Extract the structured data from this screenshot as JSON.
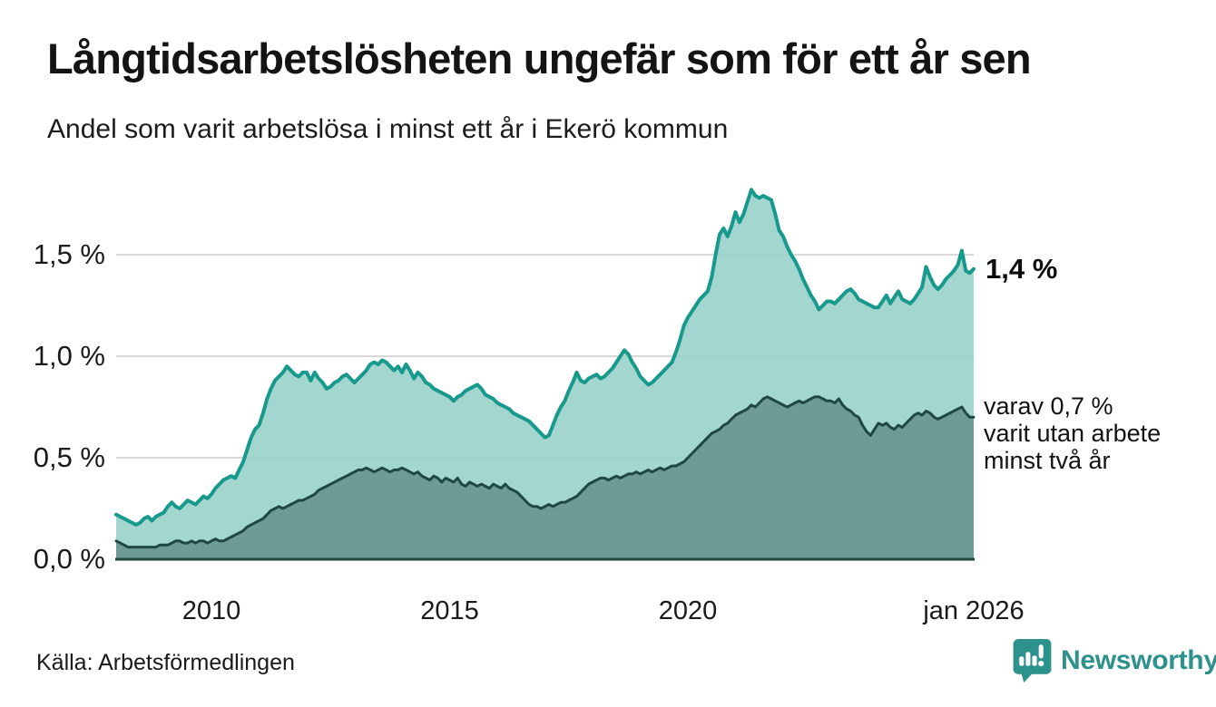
{
  "header": {
    "title": "Långtidsarbetslösheten ungefär som för ett år sen",
    "subtitle": "Andel som varit arbetslösa i minst ett år i Ekerö kommun"
  },
  "footer": {
    "source": "Källa: Arbetsförmedlingen",
    "brand": "Newsworthy"
  },
  "chart_data": {
    "type": "area",
    "title": "Långtidsarbetslösheten ungefär som för ett år sen",
    "subtitle": "Andel som varit arbetslösa i minst ett år i Ekerö kommun",
    "xlabel": "",
    "ylabel": "",
    "unit": "%",
    "x_range": [
      "2008-01",
      "2026-01"
    ],
    "ylim": [
      0,
      1.9
    ],
    "grid": "horizontal",
    "legend": "none",
    "colors": {
      "grid": "#d8d8d8",
      "axis": "#1f463f",
      "total_line": "#17998b",
      "total_fill": "#9ad1cb",
      "subset_line": "#1f4843",
      "subset_fill": "#6c9891",
      "brand_teal": "#2c928b"
    },
    "y_ticks": [
      {
        "label": "0,0 %",
        "value": 0
      },
      {
        "label": "0,5 %",
        "value": 0.5
      },
      {
        "label": "1,0 %",
        "value": 1.0
      },
      {
        "label": "1,5 %",
        "value": 1.5
      }
    ],
    "x_ticks": [
      {
        "label": "2010",
        "month_index": 24
      },
      {
        "label": "2015",
        "month_index": 84
      },
      {
        "label": "2020",
        "month_index": 144
      },
      {
        "label": "jan 2026",
        "month_index": 216
      }
    ],
    "annotations": {
      "total_end": "1,4 %",
      "subset_end": "varav 0,7 %\nvarit utan arbete\nminst två år"
    },
    "series": [
      {
        "name": "Andel arbetslösa minst ett år",
        "current_value": "1,4 %",
        "values": [
          0.22,
          0.21,
          0.2,
          0.19,
          0.18,
          0.17,
          0.18,
          0.2,
          0.21,
          0.19,
          0.21,
          0.22,
          0.23,
          0.26,
          0.28,
          0.26,
          0.25,
          0.27,
          0.29,
          0.28,
          0.27,
          0.29,
          0.31,
          0.3,
          0.32,
          0.35,
          0.37,
          0.39,
          0.4,
          0.41,
          0.4,
          0.44,
          0.48,
          0.54,
          0.6,
          0.64,
          0.66,
          0.72,
          0.79,
          0.84,
          0.88,
          0.9,
          0.92,
          0.95,
          0.93,
          0.91,
          0.9,
          0.92,
          0.92,
          0.88,
          0.92,
          0.89,
          0.87,
          0.84,
          0.85,
          0.87,
          0.88,
          0.9,
          0.91,
          0.89,
          0.87,
          0.89,
          0.91,
          0.93,
          0.96,
          0.97,
          0.96,
          0.98,
          0.97,
          0.95,
          0.93,
          0.95,
          0.92,
          0.96,
          0.93,
          0.89,
          0.92,
          0.9,
          0.87,
          0.86,
          0.84,
          0.83,
          0.82,
          0.81,
          0.8,
          0.78,
          0.8,
          0.81,
          0.83,
          0.84,
          0.85,
          0.86,
          0.84,
          0.81,
          0.8,
          0.79,
          0.77,
          0.76,
          0.75,
          0.74,
          0.72,
          0.71,
          0.7,
          0.69,
          0.68,
          0.66,
          0.64,
          0.62,
          0.6,
          0.61,
          0.66,
          0.71,
          0.75,
          0.78,
          0.83,
          0.87,
          0.92,
          0.88,
          0.87,
          0.89,
          0.9,
          0.91,
          0.89,
          0.9,
          0.92,
          0.94,
          0.97,
          1.0,
          1.03,
          1.01,
          0.97,
          0.94,
          0.9,
          0.88,
          0.86,
          0.87,
          0.89,
          0.91,
          0.93,
          0.95,
          0.97,
          1.02,
          1.08,
          1.15,
          1.19,
          1.22,
          1.25,
          1.28,
          1.3,
          1.32,
          1.39,
          1.5,
          1.6,
          1.63,
          1.59,
          1.64,
          1.71,
          1.66,
          1.7,
          1.76,
          1.82,
          1.79,
          1.78,
          1.79,
          1.78,
          1.77,
          1.7,
          1.62,
          1.59,
          1.54,
          1.5,
          1.47,
          1.43,
          1.38,
          1.34,
          1.3,
          1.27,
          1.23,
          1.25,
          1.27,
          1.27,
          1.26,
          1.28,
          1.3,
          1.32,
          1.33,
          1.31,
          1.28,
          1.27,
          1.26,
          1.25,
          1.24,
          1.24,
          1.27,
          1.3,
          1.26,
          1.29,
          1.32,
          1.28,
          1.27,
          1.26,
          1.28,
          1.31,
          1.34,
          1.44,
          1.39,
          1.35,
          1.33,
          1.35,
          1.38,
          1.4,
          1.42,
          1.45,
          1.52,
          1.42,
          1.41,
          1.43
        ]
      },
      {
        "name": "varav utan arbete minst två år",
        "current_value": "0,7 %",
        "values": [
          0.09,
          0.08,
          0.07,
          0.06,
          0.06,
          0.06,
          0.06,
          0.06,
          0.06,
          0.06,
          0.06,
          0.07,
          0.07,
          0.07,
          0.08,
          0.09,
          0.09,
          0.08,
          0.08,
          0.09,
          0.08,
          0.09,
          0.09,
          0.08,
          0.09,
          0.1,
          0.09,
          0.09,
          0.1,
          0.11,
          0.12,
          0.13,
          0.14,
          0.16,
          0.17,
          0.18,
          0.19,
          0.2,
          0.22,
          0.24,
          0.25,
          0.26,
          0.25,
          0.26,
          0.27,
          0.28,
          0.29,
          0.29,
          0.3,
          0.31,
          0.32,
          0.34,
          0.35,
          0.36,
          0.37,
          0.38,
          0.39,
          0.4,
          0.41,
          0.42,
          0.43,
          0.44,
          0.44,
          0.45,
          0.44,
          0.43,
          0.44,
          0.45,
          0.44,
          0.43,
          0.44,
          0.44,
          0.45,
          0.44,
          0.43,
          0.42,
          0.43,
          0.41,
          0.4,
          0.39,
          0.41,
          0.4,
          0.38,
          0.4,
          0.39,
          0.38,
          0.4,
          0.37,
          0.36,
          0.38,
          0.37,
          0.36,
          0.37,
          0.36,
          0.35,
          0.37,
          0.36,
          0.35,
          0.37,
          0.35,
          0.34,
          0.33,
          0.31,
          0.29,
          0.27,
          0.26,
          0.26,
          0.25,
          0.26,
          0.27,
          0.26,
          0.27,
          0.28,
          0.28,
          0.29,
          0.3,
          0.31,
          0.33,
          0.35,
          0.37,
          0.38,
          0.39,
          0.4,
          0.4,
          0.39,
          0.4,
          0.41,
          0.4,
          0.41,
          0.42,
          0.42,
          0.43,
          0.42,
          0.43,
          0.44,
          0.43,
          0.44,
          0.45,
          0.44,
          0.45,
          0.46,
          0.46,
          0.47,
          0.48,
          0.5,
          0.52,
          0.54,
          0.56,
          0.58,
          0.6,
          0.62,
          0.63,
          0.64,
          0.66,
          0.67,
          0.69,
          0.71,
          0.72,
          0.73,
          0.74,
          0.76,
          0.75,
          0.77,
          0.79,
          0.8,
          0.79,
          0.78,
          0.77,
          0.76,
          0.75,
          0.76,
          0.77,
          0.78,
          0.77,
          0.78,
          0.79,
          0.8,
          0.8,
          0.79,
          0.78,
          0.78,
          0.77,
          0.79,
          0.76,
          0.74,
          0.73,
          0.71,
          0.7,
          0.66,
          0.63,
          0.61,
          0.64,
          0.67,
          0.66,
          0.67,
          0.65,
          0.64,
          0.66,
          0.65,
          0.67,
          0.69,
          0.71,
          0.72,
          0.71,
          0.73,
          0.72,
          0.7,
          0.69,
          0.7,
          0.71,
          0.72,
          0.73,
          0.74,
          0.75,
          0.72,
          0.7,
          0.7
        ]
      }
    ]
  }
}
